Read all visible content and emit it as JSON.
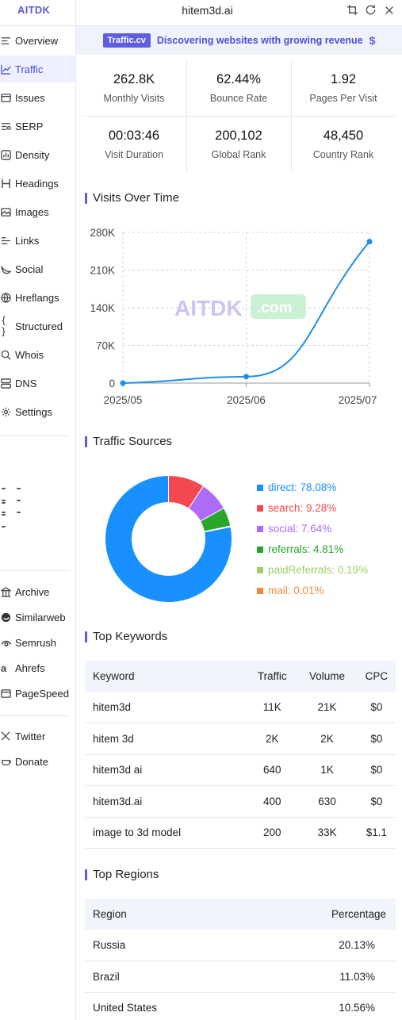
{
  "header": {
    "brand": "AITDK",
    "site": "hitem3d.ai",
    "icons": [
      "crop-icon",
      "refresh-icon",
      "close-icon"
    ]
  },
  "sidebar": {
    "items": [
      {
        "label": "Overview",
        "icon": "overview-icon"
      },
      {
        "label": "Traffic",
        "icon": "traffic-chart-icon",
        "active": true
      },
      {
        "label": "Issues",
        "icon": "issues-icon"
      },
      {
        "label": "SERP",
        "icon": "serp-icon"
      },
      {
        "label": "Density",
        "icon": "density-icon"
      },
      {
        "label": "Headings",
        "icon": "headings-icon"
      },
      {
        "label": "Images",
        "icon": "images-icon"
      },
      {
        "label": "Links",
        "icon": "links-icon"
      },
      {
        "label": "Social",
        "icon": "social-icon"
      },
      {
        "label": "Hreflangs",
        "icon": "hreflangs-icon"
      },
      {
        "label": "Structured",
        "icon": "structured-data-icon"
      },
      {
        "label": "Whois",
        "icon": "whois-icon"
      },
      {
        "label": "DNS",
        "icon": "dns-icon"
      },
      {
        "label": "Settings",
        "icon": "settings-icon"
      }
    ],
    "tools": [
      {
        "label": "Archive",
        "icon": "archive-icon"
      },
      {
        "label": "Similarweb",
        "icon": "similarweb-icon"
      },
      {
        "label": "Semrush",
        "icon": "semrush-icon"
      },
      {
        "label": "Ahrefs",
        "icon": "ahrefs-icon"
      },
      {
        "label": "PageSpeed",
        "icon": "pagespeed-icon"
      }
    ],
    "social": [
      {
        "label": "Twitter",
        "icon": "x-twitter-icon"
      },
      {
        "label": "Donate",
        "icon": "donate-icon"
      }
    ]
  },
  "banner": {
    "pill": "Traffic.cv",
    "message": "Discovering websites with growing revenue",
    "symbol": "$"
  },
  "stats": [
    {
      "value": "262.8K",
      "label": "Monthly Visits"
    },
    {
      "value": "62.44%",
      "label": "Bounce Rate"
    },
    {
      "value": "1.92",
      "label": "Pages Per Visit"
    },
    {
      "value": "00:03:46",
      "label": "Visit Duration"
    },
    {
      "value": "200,102",
      "label": "Global Rank"
    },
    {
      "value": "48,450",
      "label": "Country Rank"
    }
  ],
  "sections": {
    "visits": "Visits Over Time",
    "sources": "Traffic Sources",
    "keywords": "Top Keywords",
    "regions": "Top Regions"
  },
  "watermark": {
    "a": "AITDK",
    "b": ".com"
  },
  "colors": {
    "accent": "#5b5bd6",
    "line": "#1f8fe6"
  },
  "chart_data": [
    {
      "type": "line",
      "x": [
        "2025/05",
        "2025/06",
        "2025/07"
      ],
      "y": [
        0,
        12000,
        262800
      ],
      "yticks": [
        0,
        70000,
        140000,
        210000,
        280000
      ],
      "ytick_labels": [
        "0",
        "70K",
        "140K",
        "210K",
        "280K"
      ],
      "ylim": [
        0,
        280000
      ],
      "grid": true
    },
    {
      "type": "pie",
      "labels": [
        "direct",
        "search",
        "social",
        "referrals",
        "paidReferrals",
        "mail"
      ],
      "values": [
        78.08,
        9.28,
        7.64,
        4.81,
        0.19,
        0.01
      ],
      "display": [
        "direct: 78.08%",
        "search: 9.28%",
        "social: 7.64%",
        "referrals: 4.81%",
        "paidReferrals: 0.19%",
        "mail: 0.01%"
      ],
      "colors": [
        "#1890ff",
        "#f5474f",
        "#ad6bf7",
        "#2aa62a",
        "#9ad364",
        "#f58a3a"
      ],
      "legend": "right"
    }
  ],
  "keywords": {
    "headers": [
      "Keyword",
      "Traffic",
      "Volume",
      "CPC"
    ],
    "rows": [
      [
        "hitem3d",
        "11K",
        "21K",
        "$0"
      ],
      [
        "hitem 3d",
        "2K",
        "2K",
        "$0"
      ],
      [
        "hitem3d ai",
        "640",
        "1K",
        "$0"
      ],
      [
        "hitem3d.ai",
        "400",
        "630",
        "$0"
      ],
      [
        "image to 3d model",
        "200",
        "33K",
        "$1.1"
      ]
    ]
  },
  "regions": {
    "headers": [
      "Region",
      "Percentage"
    ],
    "rows": [
      [
        "Russia",
        "20.13%"
      ],
      [
        "Brazil",
        "11.03%"
      ],
      [
        "United States",
        "10.56%"
      ]
    ]
  }
}
